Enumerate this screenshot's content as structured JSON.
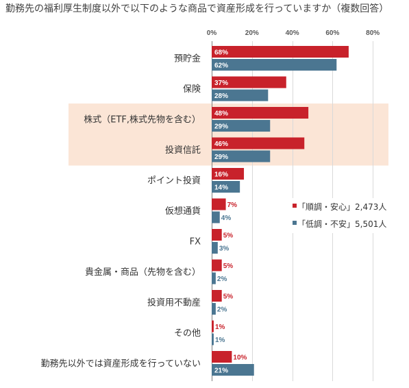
{
  "chart_data": {
    "type": "bar",
    "orientation": "horizontal",
    "title": "勤務先の福利厚生制度以外で以下のような商品で資産形成を行っていますか（複数回答）",
    "categories": [
      "預貯金",
      "保険",
      "株式（ETF,株式先物を含む）",
      "投資信託",
      "ポイント投資",
      "仮想通貨",
      "FX",
      "貴金属・商品（先物を含む）",
      "投資用不動産",
      "その他",
      "勤務先以外では資産形成を行っていない"
    ],
    "series": [
      {
        "name": "「順調・安心」2,473人",
        "color": "#c8222b",
        "values": [
          68,
          37,
          48,
          46,
          16,
          7,
          5,
          5,
          5,
          1,
          10
        ]
      },
      {
        "name": "「低調・不安」5,501人",
        "color": "#4b7691",
        "values": [
          62,
          28,
          29,
          29,
          14,
          4,
          3,
          2,
          2,
          1,
          21
        ]
      }
    ],
    "value_suffix": "%",
    "xlim": [
      0,
      80
    ],
    "xticks": [
      0,
      20,
      40,
      60,
      80
    ],
    "xaxis_position": "top",
    "grid": true,
    "legend_position": "center-right",
    "highlight_indices": [
      2,
      3
    ],
    "highlight_color": "#fbe5d6",
    "axis_color": "#7f7f7f",
    "grid_color": "#d9d9d9"
  }
}
